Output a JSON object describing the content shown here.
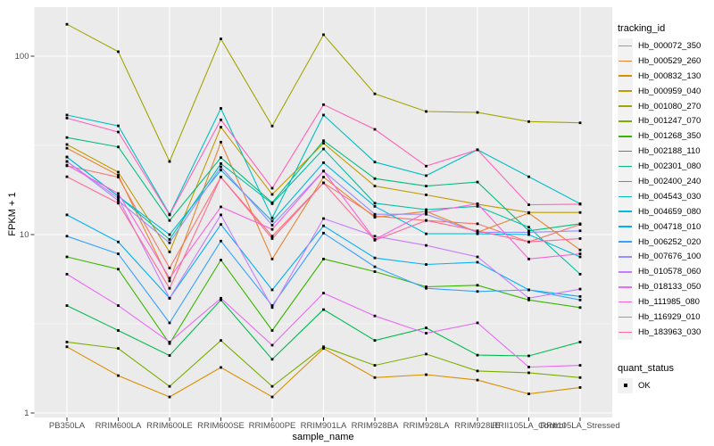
{
  "colors": {
    "page_bg": "#FFFFFF",
    "panel_bg": "#EBEBEB",
    "grid": "#FFFFFF",
    "tick_mark": "#333333",
    "tick_text": "#4D4D4D",
    "title_text": "#000000",
    "point": "#000000",
    "legend_key_bg": "#F2F2F2"
  },
  "chart_data": {
    "type": "line",
    "title": "",
    "xlabel": "sample_name",
    "ylabel": "FPKM + 1",
    "y_scale": "log10",
    "ylim": [
      1,
      188
    ],
    "y_ticks": [
      1,
      10,
      100
    ],
    "y_minor_ticks": [
      3.162,
      31.623
    ],
    "grid": true,
    "legend_position": "right",
    "legend_title": "tracking_id",
    "point_shape": "small-black-square",
    "categories": [
      "PB350LA",
      "RRIM600LA",
      "RRIM600LE",
      "RRIM600SE",
      "RRIM600PE",
      "RRIM901LA",
      "RRIM928BA",
      "RRIM928LA",
      "RRIM928LE",
      "RRII105LA_Control",
      "RRII105LA_Stressed"
    ],
    "series": [
      {
        "name": "Hb_000072_350",
        "color": "#F8766D",
        "values": [
          24.3,
          21.0,
          6.5,
          21.0,
          9.8,
          19.5,
          12.7,
          12.0,
          11.5,
          9.1,
          11.4
        ]
      },
      {
        "name": "Hb_000529_260",
        "color": "#EA8331",
        "values": [
          30.5,
          21.5,
          5.5,
          33.0,
          7.3,
          21.0,
          12.5,
          13.5,
          10.3,
          13.2,
          8.2
        ]
      },
      {
        "name": "Hb_000832_130",
        "color": "#D89000",
        "values": [
          2.35,
          1.62,
          1.23,
          1.8,
          1.23,
          2.3,
          1.58,
          1.64,
          1.53,
          1.28,
          1.39
        ]
      },
      {
        "name": "Hb_000959_040",
        "color": "#C09B00",
        "values": [
          32.0,
          22.4,
          8.0,
          40.0,
          16.8,
          32.5,
          18.7,
          16.7,
          14.8,
          13.3,
          13.3
        ]
      },
      {
        "name": "Hb_001080_270",
        "color": "#A3A500",
        "values": [
          151,
          106,
          25.7,
          125,
          40.6,
          132,
          61.5,
          49.0,
          48.4,
          43.0,
          42.3
        ]
      },
      {
        "name": "Hb_001247_070",
        "color": "#7CAE00",
        "values": [
          2.5,
          2.3,
          1.41,
          2.55,
          1.41,
          2.35,
          1.85,
          2.14,
          1.72,
          1.68,
          1.58
        ]
      },
      {
        "name": "Hb_001268_350",
        "color": "#39B600",
        "values": [
          7.5,
          6.4,
          2.45,
          7.2,
          2.9,
          7.3,
          6.2,
          5.1,
          5.2,
          4.3,
          3.9
        ]
      },
      {
        "name": "Hb_002188_110",
        "color": "#00BB4E",
        "values": [
          4.0,
          2.9,
          2.1,
          4.3,
          2.0,
          3.8,
          2.55,
          3.0,
          2.11,
          2.09,
          2.5
        ]
      },
      {
        "name": "Hb_002301_080",
        "color": "#00BF7D",
        "values": [
          35.0,
          31.0,
          12.0,
          27.0,
          15.1,
          33.6,
          20.6,
          18.7,
          19.7,
          10.5,
          11.5
        ]
      },
      {
        "name": "Hb_002400_240",
        "color": "#00C1A3",
        "values": [
          27.2,
          16.4,
          9.4,
          25.0,
          14.9,
          30.2,
          15.0,
          13.8,
          14.4,
          11.0,
          6.0
        ]
      },
      {
        "name": "Hb_004543_030",
        "color": "#00BFC4",
        "values": [
          46.8,
          40.7,
          13.0,
          51.0,
          12.4,
          46.8,
          25.5,
          21.4,
          29.9,
          21.1,
          14.9
        ]
      },
      {
        "name": "Hb_004659_080",
        "color": "#00BAE0",
        "values": [
          27.2,
          16.4,
          10.0,
          23.0,
          11.9,
          25.3,
          14.4,
          10.1,
          10.1,
          10.0,
          7.5
        ]
      },
      {
        "name": "Hb_004718_010",
        "color": "#00B0F6",
        "values": [
          12.9,
          9.1,
          4.4,
          11.4,
          4.9,
          11.2,
          7.4,
          6.8,
          7.0,
          4.9,
          4.5
        ]
      },
      {
        "name": "Hb_006252_020",
        "color": "#35A2FF",
        "values": [
          9.8,
          7.8,
          3.2,
          9.2,
          4.0,
          10.2,
          6.6,
          5.0,
          4.8,
          4.9,
          4.3
        ]
      },
      {
        "name": "Hb_007676_100",
        "color": "#9590FF",
        "values": [
          25.7,
          15.5,
          9.0,
          24.0,
          11.3,
          22.7,
          13.0,
          13.0,
          10.3,
          10.3,
          10.5
        ]
      },
      {
        "name": "Hb_010578_060",
        "color": "#C77CFF",
        "values": [
          25.7,
          16.0,
          4.4,
          12.9,
          3.9,
          12.3,
          9.8,
          8.7,
          7.5,
          4.4,
          4.95
        ]
      },
      {
        "name": "Hb_018133_050",
        "color": "#E76BF3",
        "values": [
          6.0,
          4.0,
          2.5,
          4.4,
          2.4,
          4.7,
          3.5,
          2.8,
          3.2,
          1.81,
          1.85
        ]
      },
      {
        "name": "Hb_111985_080",
        "color": "#FA62DB",
        "values": [
          24.5,
          17.0,
          5.7,
          14.3,
          10.7,
          22.7,
          9.4,
          13.3,
          14.9,
          7.3,
          7.8
        ]
      },
      {
        "name": "Hb_116929_010",
        "color": "#FF62BC",
        "values": [
          45.0,
          37.6,
          12.9,
          44.0,
          18.2,
          53.5,
          38.9,
          24.2,
          29.9,
          14.7,
          14.8
        ]
      },
      {
        "name": "Hb_183963_030",
        "color": "#FF6A98",
        "values": [
          21.1,
          15.0,
          5.0,
          21.0,
          9.5,
          19.5,
          9.3,
          12.0,
          10.5,
          9.1,
          9.5
        ]
      }
    ],
    "quant_status": {
      "title": "quant_status",
      "items": [
        {
          "label": "OK",
          "marker": "black-square"
        }
      ]
    }
  }
}
